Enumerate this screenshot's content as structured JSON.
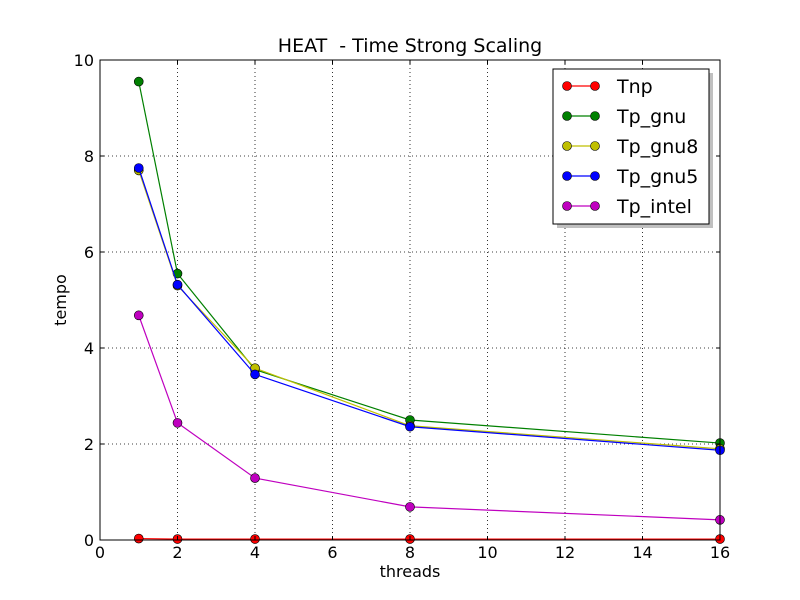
{
  "chart_data": {
    "type": "line",
    "title": "HEAT  - Time Strong Scaling",
    "xlabel": "threads",
    "ylabel": "tempo",
    "xlim": [
      0,
      16
    ],
    "ylim": [
      0,
      10
    ],
    "x_ticks": [
      0,
      2,
      4,
      6,
      8,
      10,
      12,
      14,
      16
    ],
    "y_ticks": [
      0,
      2,
      4,
      6,
      8,
      10
    ],
    "grid": true,
    "legend_position": "top-right",
    "x": [
      1,
      2,
      4,
      8,
      16
    ],
    "series": [
      {
        "name": "Tnp",
        "color": "#ff0000",
        "values": [
          0.03,
          0.02,
          0.02,
          0.02,
          0.02
        ]
      },
      {
        "name": "Tp_gnu",
        "color": "#008000",
        "values": [
          9.55,
          5.55,
          3.55,
          2.5,
          2.02
        ]
      },
      {
        "name": "Tp_gnu8",
        "color": "#bfbf00",
        "values": [
          7.7,
          5.3,
          3.58,
          2.38,
          1.9
        ]
      },
      {
        "name": "Tp_gnu5",
        "color": "#0000ff",
        "values": [
          7.75,
          5.32,
          3.45,
          2.36,
          1.87
        ]
      },
      {
        "name": "Tp_intel",
        "color": "#bf00bf",
        "values": [
          4.68,
          2.44,
          1.29,
          0.69,
          0.42
        ]
      }
    ]
  }
}
